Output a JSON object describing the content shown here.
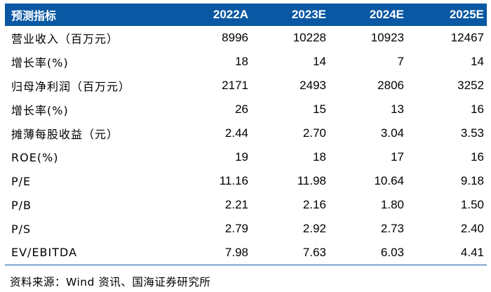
{
  "table": {
    "header": {
      "label": "预测指标",
      "years": [
        "2022A",
        "2023E",
        "2024E",
        "2025E"
      ]
    },
    "rows": [
      {
        "label": "营业收入（百万元）",
        "values": [
          "8996",
          "10228",
          "10923",
          "12467"
        ]
      },
      {
        "label": "增长率(%)",
        "values": [
          "18",
          "14",
          "7",
          "14"
        ]
      },
      {
        "label": "归母净利润（百万元）",
        "values": [
          "2171",
          "2493",
          "2806",
          "3252"
        ]
      },
      {
        "label": "增长率(%)",
        "values": [
          "26",
          "15",
          "13",
          "16"
        ]
      },
      {
        "label": "摊薄每股收益（元）",
        "values": [
          "2.44",
          "2.70",
          "3.04",
          "3.53"
        ]
      },
      {
        "label": "ROE(%)",
        "values": [
          "19",
          "18",
          "17",
          "16"
        ]
      },
      {
        "label": "P/E",
        "values": [
          "11.16",
          "11.98",
          "10.64",
          "9.18"
        ]
      },
      {
        "label": "P/B",
        "values": [
          "2.21",
          "2.16",
          "1.80",
          "1.50"
        ]
      },
      {
        "label": "P/S",
        "values": [
          "2.79",
          "2.92",
          "2.73",
          "2.40"
        ]
      },
      {
        "label": "EV/EBITDA",
        "values": [
          "7.98",
          "7.63",
          "6.03",
          "4.41"
        ]
      }
    ],
    "header_color": "#0a58a3"
  },
  "source": "资料来源：Wind 资讯、国海证券研究所"
}
